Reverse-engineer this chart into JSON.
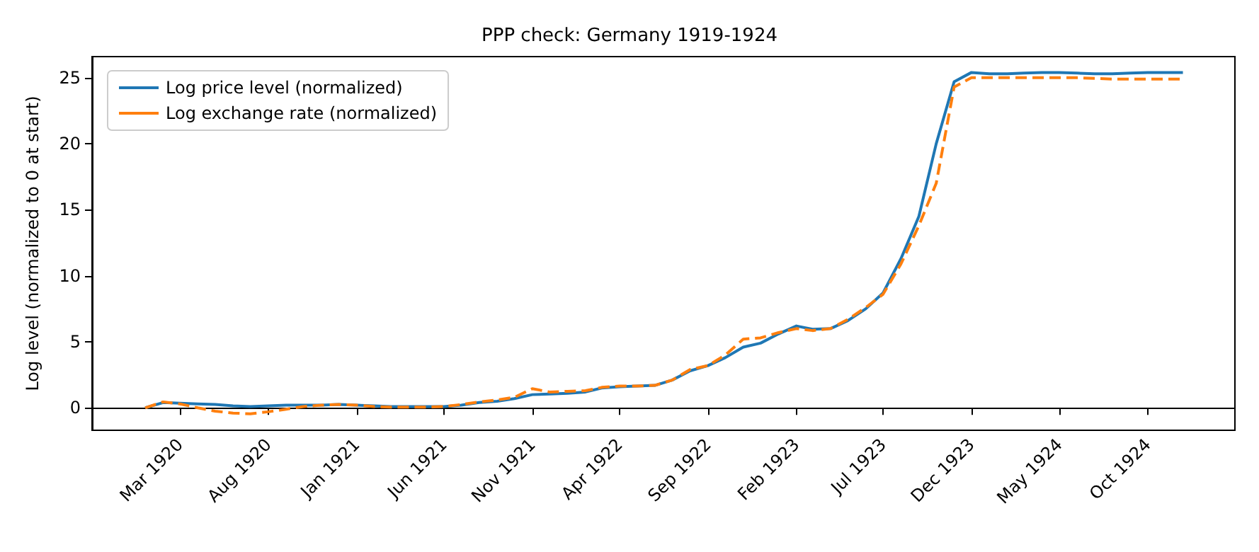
{
  "chart_data": {
    "type": "line",
    "title": "PPP check: Germany 1919-1924",
    "ylabel": "Log level (normalized to 0 at start)",
    "x": [
      "1920-01",
      "1920-02",
      "1920-03",
      "1920-04",
      "1920-05",
      "1920-06",
      "1920-07",
      "1920-08",
      "1920-09",
      "1920-10",
      "1920-11",
      "1920-12",
      "1921-01",
      "1921-02",
      "1921-03",
      "1921-04",
      "1921-05",
      "1921-06",
      "1921-07",
      "1921-08",
      "1921-09",
      "1921-10",
      "1921-11",
      "1921-12",
      "1922-01",
      "1922-02",
      "1922-03",
      "1922-04",
      "1922-05",
      "1922-06",
      "1922-07",
      "1922-08",
      "1922-09",
      "1922-10",
      "1922-11",
      "1922-12",
      "1923-01",
      "1923-02",
      "1923-03",
      "1923-04",
      "1923-05",
      "1923-06",
      "1923-07",
      "1923-08",
      "1923-09",
      "1923-10",
      "1923-11",
      "1923-12",
      "1924-01",
      "1924-02",
      "1924-03",
      "1924-04",
      "1924-05",
      "1924-06",
      "1924-07",
      "1924-08",
      "1924-09",
      "1924-10",
      "1924-11",
      "1924-12"
    ],
    "series": [
      {
        "name": "Log price level (normalized)",
        "color": "#1f77b4",
        "line_style": "solid",
        "values": [
          0,
          0.4,
          0.35,
          0.3,
          0.25,
          0.15,
          0.1,
          0.15,
          0.2,
          0.2,
          0.2,
          0.25,
          0.2,
          0.15,
          0.1,
          0.1,
          0.1,
          0.1,
          0.2,
          0.4,
          0.5,
          0.7,
          1.0,
          1.05,
          1.1,
          1.2,
          1.5,
          1.6,
          1.65,
          1.7,
          2.1,
          2.8,
          3.2,
          3.8,
          4.6,
          4.9,
          5.6,
          6.2,
          5.95,
          6.0,
          6.6,
          7.5,
          8.7,
          11.3,
          14.5,
          20.0,
          24.7,
          25.4,
          25.3,
          25.3,
          25.35,
          25.4,
          25.4,
          25.35,
          25.3,
          25.3,
          25.35,
          25.4,
          25.4,
          25.4
        ]
      },
      {
        "name": "Log exchange rate (normalized)",
        "color": "#ff7f0e",
        "line_style": "dashed",
        "values": [
          0,
          0.45,
          0.3,
          0,
          -0.25,
          -0.4,
          -0.45,
          -0.3,
          -0.1,
          0.1,
          0.2,
          0.25,
          0.2,
          0.1,
          0.05,
          0.05,
          0.05,
          0.1,
          0.25,
          0.45,
          0.6,
          0.8,
          1.45,
          1.2,
          1.25,
          1.3,
          1.55,
          1.65,
          1.65,
          1.7,
          2.1,
          2.9,
          3.2,
          4.0,
          5.2,
          5.3,
          5.7,
          6.0,
          5.85,
          6.0,
          6.7,
          7.6,
          8.6,
          10.9,
          13.8,
          17.0,
          24.3,
          25.0,
          25.0,
          25.0,
          25.0,
          25.0,
          25.0,
          25.0,
          24.95,
          24.9,
          24.9,
          24.9,
          24.9,
          24.9
        ]
      }
    ],
    "xlim": [
      "1919-10",
      "1925-03"
    ],
    "xticks": [
      {
        "value": "1920-03",
        "label": "Mar 1920"
      },
      {
        "value": "1920-08",
        "label": "Aug 1920"
      },
      {
        "value": "1921-01",
        "label": "Jan 1921"
      },
      {
        "value": "1921-06",
        "label": "Jun 1921"
      },
      {
        "value": "1921-11",
        "label": "Nov 1921"
      },
      {
        "value": "1922-04",
        "label": "Apr 1922"
      },
      {
        "value": "1922-09",
        "label": "Sep 1922"
      },
      {
        "value": "1923-02",
        "label": "Feb 1923"
      },
      {
        "value": "1923-07",
        "label": "Jul 1923"
      },
      {
        "value": "1923-12",
        "label": "Dec 1923"
      },
      {
        "value": "1924-05",
        "label": "May 1924"
      },
      {
        "value": "1924-10",
        "label": "Oct 1924"
      }
    ],
    "ylim": [
      -1.7,
      26.6
    ],
    "yticks": [
      0,
      5,
      10,
      15,
      20,
      25
    ],
    "legend": "top left",
    "marker": "none"
  }
}
